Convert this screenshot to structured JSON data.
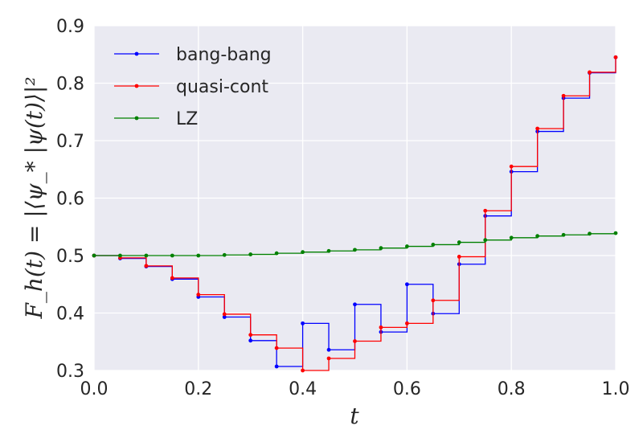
{
  "chart_data": {
    "type": "line",
    "step": "post",
    "xlabel": "t",
    "ylabel": "F_h(t) = |⟨ψ_* |ψ(t)⟩|²",
    "xlim": [
      0.0,
      1.0
    ],
    "ylim": [
      0.3,
      0.9
    ],
    "xticks": [
      "0.0",
      "0.2",
      "0.4",
      "0.6",
      "0.8",
      "1.0"
    ],
    "yticks": [
      "0.3",
      "0.4",
      "0.5",
      "0.6",
      "0.7",
      "0.8",
      "0.9"
    ],
    "grid": true,
    "legend_position": "top-left",
    "background_color": "#EAEAF2",
    "x": [
      0.0,
      0.05,
      0.1,
      0.15,
      0.2,
      0.25,
      0.3,
      0.35,
      0.4,
      0.45,
      0.5,
      0.55,
      0.6,
      0.65,
      0.7,
      0.75,
      0.8,
      0.85,
      0.9,
      0.95,
      1.0
    ],
    "series": [
      {
        "name": "bang-bang",
        "color": "#0000FF",
        "values": [
          0.5,
          0.495,
          0.481,
          0.459,
          0.428,
          0.393,
          0.352,
          0.307,
          0.382,
          0.336,
          0.415,
          0.367,
          0.45,
          0.399,
          0.485,
          0.569,
          0.646,
          0.716,
          0.774,
          0.818,
          0.845
        ]
      },
      {
        "name": "quasi-cont",
        "color": "#FF0000",
        "values": [
          0.5,
          0.496,
          0.482,
          0.461,
          0.432,
          0.398,
          0.362,
          0.339,
          0.3,
          0.321,
          0.351,
          0.375,
          0.382,
          0.422,
          0.498,
          0.578,
          0.655,
          0.721,
          0.778,
          0.819,
          0.845
        ]
      },
      {
        "name": "LZ",
        "color": "#008000",
        "values": [
          0.5,
          0.5,
          0.5,
          0.5,
          0.5,
          0.501,
          0.502,
          0.504,
          0.506,
          0.508,
          0.51,
          0.513,
          0.516,
          0.519,
          0.523,
          0.527,
          0.531,
          0.534,
          0.536,
          0.538,
          0.539
        ]
      }
    ]
  }
}
